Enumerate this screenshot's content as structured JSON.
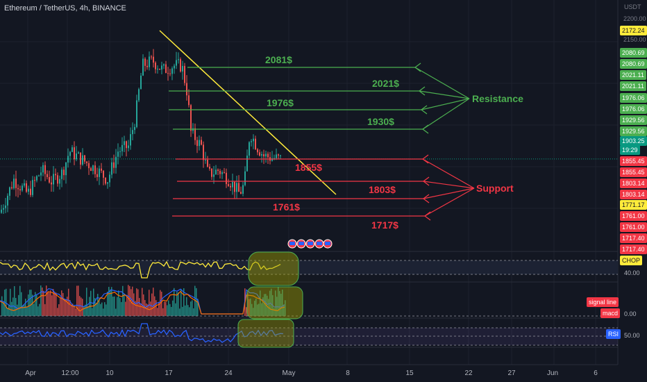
{
  "header": {
    "title": "Ethereum / TetherUS, 4h, BINANCE"
  },
  "axis": {
    "unit": "USDT",
    "price_ticks": [
      "2200.00",
      "2150.00"
    ],
    "time_ticks": [
      "Apr",
      "12:00",
      "10",
      "17",
      "24",
      "May",
      "8",
      "15",
      "22",
      "27",
      "Jun",
      "6"
    ]
  },
  "price_tags": {
    "high": {
      "label": "2172.24",
      "bg": "#ffeb3b",
      "fg": "#131722"
    },
    "resistance": [
      "2080.69",
      "2080.69",
      "2021.11",
      "2021.11",
      "1976.06",
      "1976.06",
      "1929.56",
      "1929.56"
    ],
    "last": {
      "price": "1903.25",
      "countdown": "19:29",
      "bg": "#089981"
    },
    "support": [
      "1855.45",
      "1855.45",
      "1803.14",
      "1803.14"
    ],
    "low": {
      "label": "1771.17",
      "bg": "#ffeb3b",
      "fg": "#131722"
    },
    "support_lower": [
      "1761.00",
      "1761.00",
      "1717.40",
      "1717.40"
    ]
  },
  "colors": {
    "background": "#131722",
    "resistance": "#4caf50",
    "support": "#f23645",
    "trendline": "#ffeb3b",
    "candle_up": "#26a69a",
    "candle_down": "#ef5350",
    "chop": "#ffeb3b",
    "rsi": "#2962ff"
  },
  "annotations": {
    "resistance_label": "Resistance",
    "support_label": "Support",
    "levels": [
      {
        "label": "2081$",
        "value": 2081,
        "kind": "resistance"
      },
      {
        "label": "2021$",
        "value": 2021,
        "kind": "resistance"
      },
      {
        "label": "1976$",
        "value": 1976,
        "kind": "resistance"
      },
      {
        "label": "1930$",
        "value": 1930,
        "kind": "resistance"
      },
      {
        "label": "1855$",
        "value": 1855,
        "kind": "support"
      },
      {
        "label": "1803$",
        "value": 1803,
        "kind": "support"
      },
      {
        "label": "1761$",
        "value": 1761,
        "kind": "support"
      },
      {
        "label": "1717$",
        "value": 1717,
        "kind": "support"
      }
    ]
  },
  "indicators": {
    "chop": {
      "label": "CHOP",
      "value": "40.00"
    },
    "macd": {
      "signal_label": "signal line",
      "macd_label": "macd",
      "value": "0.00"
    },
    "rsi": {
      "label": "RSI",
      "value": "50.00"
    }
  },
  "chart_data": {
    "type": "candlestick",
    "symbol": "Ethereum / TetherUS",
    "interval": "4h",
    "exchange": "BINANCE",
    "y_unit": "USDT",
    "ylim": [
      1650,
      2200
    ],
    "approx_close_path": [
      {
        "x": "Apr 1",
        "y": 1790
      },
      {
        "x": "Apr 5",
        "y": 1870
      },
      {
        "x": "Apr 8",
        "y": 1850
      },
      {
        "x": "Apr 12",
        "y": 1880
      },
      {
        "x": "Apr 14",
        "y": 2010
      },
      {
        "x": "Apr 15",
        "y": 2110
      },
      {
        "x": "Apr 17",
        "y": 2100
      },
      {
        "x": "Apr 19",
        "y": 2100
      },
      {
        "x": "Apr 20",
        "y": 1950
      },
      {
        "x": "Apr 22",
        "y": 1870
      },
      {
        "x": "Apr 24",
        "y": 1855
      },
      {
        "x": "Apr 26",
        "y": 1830
      },
      {
        "x": "Apr 27",
        "y": 1960
      },
      {
        "x": "Apr 29",
        "y": 1900
      },
      {
        "x": "Apr 30",
        "y": 1903.25
      }
    ],
    "last_price": 1903.25,
    "horizontal_levels": [
      2081,
      2021,
      1976,
      1930,
      1855,
      1803,
      1761,
      1717
    ]
  }
}
